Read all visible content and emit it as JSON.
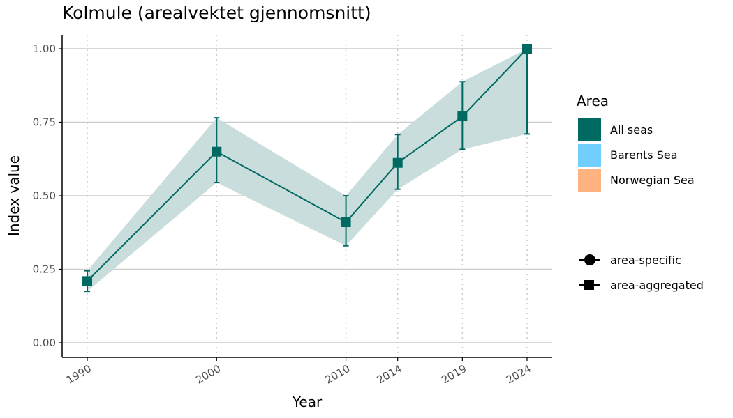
{
  "chart_data": {
    "type": "line",
    "title": "Kolmule (arealvektet gjennomsnitt)",
    "xlabel": "Year",
    "ylabel": "Index value",
    "x": [
      1990,
      2000,
      2010,
      2014,
      2019,
      2024
    ],
    "x_tick_labels": [
      "1990",
      "2000",
      "2010",
      "2014",
      "2019",
      "2024"
    ],
    "y_ticks": [
      0.0,
      0.25,
      0.5,
      0.75,
      1.0
    ],
    "y_tick_labels": [
      "0.00",
      "0.25",
      "0.50",
      "0.75",
      "1.00"
    ],
    "xlim": [
      1990,
      2024
    ],
    "ylim": [
      0.0,
      1.0
    ],
    "grid": "horizontal major lines; dotted vertical lines at data years",
    "series": [
      {
        "name": "All seas",
        "marker": "square",
        "values": [
          0.21,
          0.65,
          0.41,
          0.612,
          0.77,
          1.0
        ],
        "lower": [
          0.175,
          0.545,
          0.33,
          0.522,
          0.658,
          0.71
        ],
        "upper": [
          0.245,
          0.765,
          0.5,
          0.708,
          0.888,
          1.0
        ],
        "ribbon_lower": [
          0.175,
          0.545,
          0.33,
          0.522,
          0.658,
          0.71
        ],
        "ribbon_upper": [
          0.245,
          0.765,
          0.5,
          0.708,
          0.888,
          1.0
        ]
      }
    ],
    "legend": {
      "position": "right",
      "area_title": "Area",
      "area_items": [
        {
          "label": "All seas",
          "color": "#006962"
        },
        {
          "label": "Barents Sea",
          "color": "#70cfff"
        },
        {
          "label": "Norwegian Sea",
          "color": "#ffb380"
        }
      ],
      "shape_items": [
        {
          "label": "area-specific",
          "shape": "circle"
        },
        {
          "label": "area-aggregated",
          "shape": "square"
        }
      ]
    },
    "colors": {
      "line": "#006962",
      "ribbon": "#c9dddc",
      "grid": "#cccccc",
      "axis": "#000000",
      "tick_text": "#4d4d4d"
    }
  }
}
